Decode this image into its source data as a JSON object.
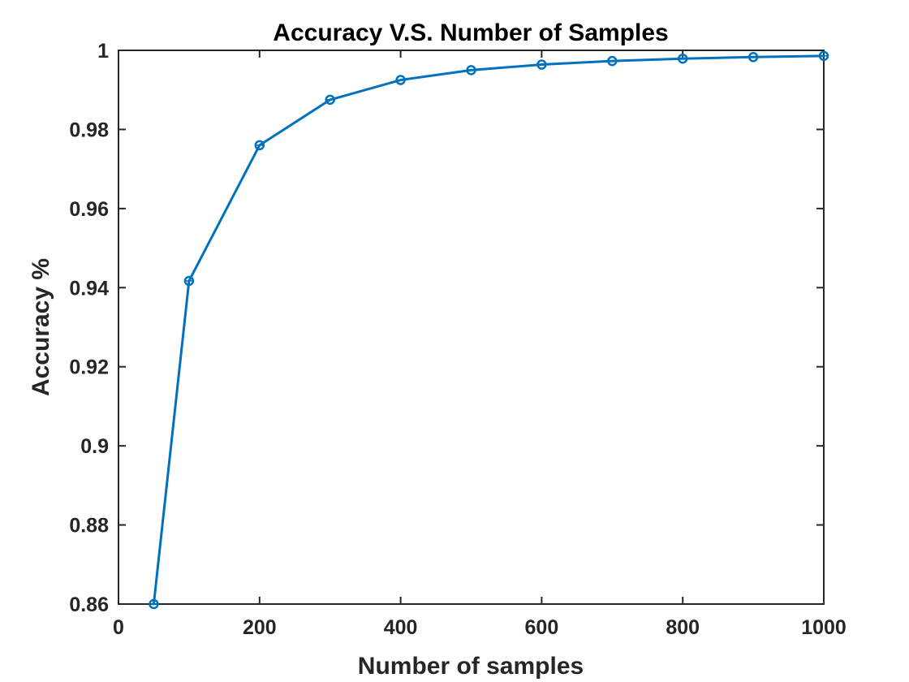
{
  "chart_data": {
    "type": "line",
    "title": "Accuracy V.S. Number of Samples",
    "xlabel": "Number of samples",
    "ylabel": "Accuracy %",
    "xlim": [
      0,
      1000
    ],
    "ylim": [
      0.86,
      1
    ],
    "x_ticks": [
      0,
      200,
      400,
      600,
      800,
      1000
    ],
    "x_tick_labels": [
      "0",
      "200",
      "400",
      "600",
      "800",
      "1000"
    ],
    "y_ticks": [
      0.86,
      0.88,
      0.9,
      0.92,
      0.94,
      0.96,
      0.98,
      1
    ],
    "y_tick_labels": [
      "0.86",
      "0.88",
      "0.9",
      "0.92",
      "0.94",
      "0.96",
      "0.98",
      "1"
    ],
    "grid": false,
    "box": true,
    "colors": {
      "series": "#0072BD",
      "axes": "#262626",
      "background": "#ffffff"
    },
    "series": [
      {
        "marker": "circle",
        "x": [
          50,
          100,
          200,
          300,
          400,
          500,
          600,
          700,
          800,
          900,
          1000
        ],
        "y": [
          0.86,
          0.9417,
          0.976,
          0.9875,
          0.9925,
          0.995,
          0.9964,
          0.9973,
          0.9979,
          0.9983,
          0.9986
        ]
      }
    ]
  }
}
